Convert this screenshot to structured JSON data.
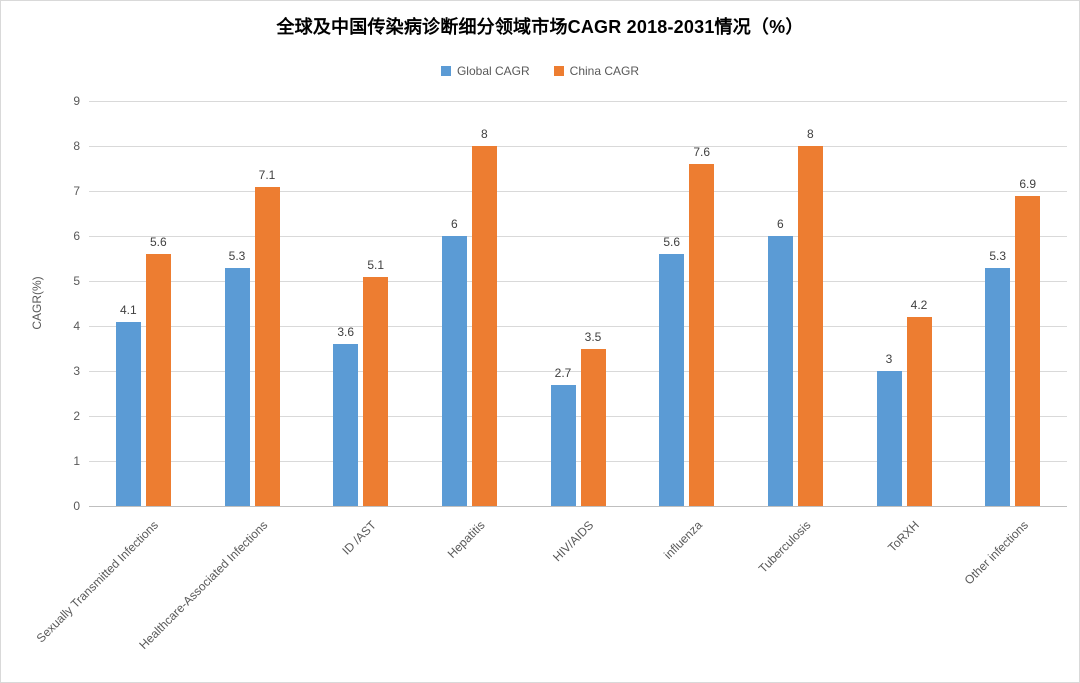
{
  "chart_data": {
    "type": "bar",
    "title": "全球及中国传染病诊断细分领域市场CAGR 2018-2031情况（%）",
    "xlabel": "",
    "ylabel": "CAGR(%)",
    "ylim": [
      0,
      9
    ],
    "ytick_step": 1,
    "grid": true,
    "legend_position": "top",
    "categories": [
      "Sexually Transmitted Infections",
      "Healthcare-Associated Infections",
      "ID /AST",
      "Hepatitis",
      "HIV/AIDS",
      "influenza",
      "Tuberculosis",
      "ToRXH",
      "Other infections"
    ],
    "series": [
      {
        "name": "Global CAGR",
        "color": "#5B9BD5",
        "values": [
          4.1,
          5.3,
          3.6,
          6,
          2.7,
          5.6,
          6,
          3,
          5.3
        ]
      },
      {
        "name": "China CAGR",
        "color": "#ED7D31",
        "values": [
          5.6,
          7.1,
          5.1,
          8,
          3.5,
          7.6,
          8,
          4.2,
          6.9
        ]
      }
    ]
  }
}
